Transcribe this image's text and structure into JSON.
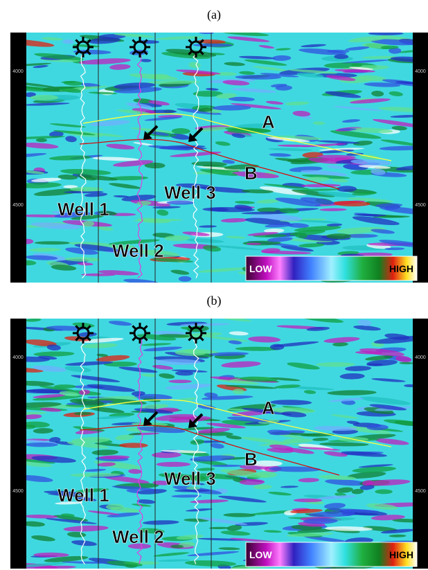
{
  "panels": [
    {
      "label": "(a)",
      "depth_ticks": [
        "4000",
        "4500"
      ],
      "horizons": [
        "A",
        "B"
      ],
      "wells": [
        "Well 1",
        "Well 2",
        "Well 3"
      ],
      "colorbar": {
        "low": "LOW",
        "high": "HIGH"
      }
    },
    {
      "label": "(b)",
      "depth_ticks": [
        "4000",
        "4500"
      ],
      "horizons": [
        "A",
        "B"
      ],
      "wells": [
        "Well 1",
        "Well 2",
        "Well 3"
      ],
      "colorbar": {
        "low": "LOW",
        "high": "HIGH"
      }
    }
  ]
}
